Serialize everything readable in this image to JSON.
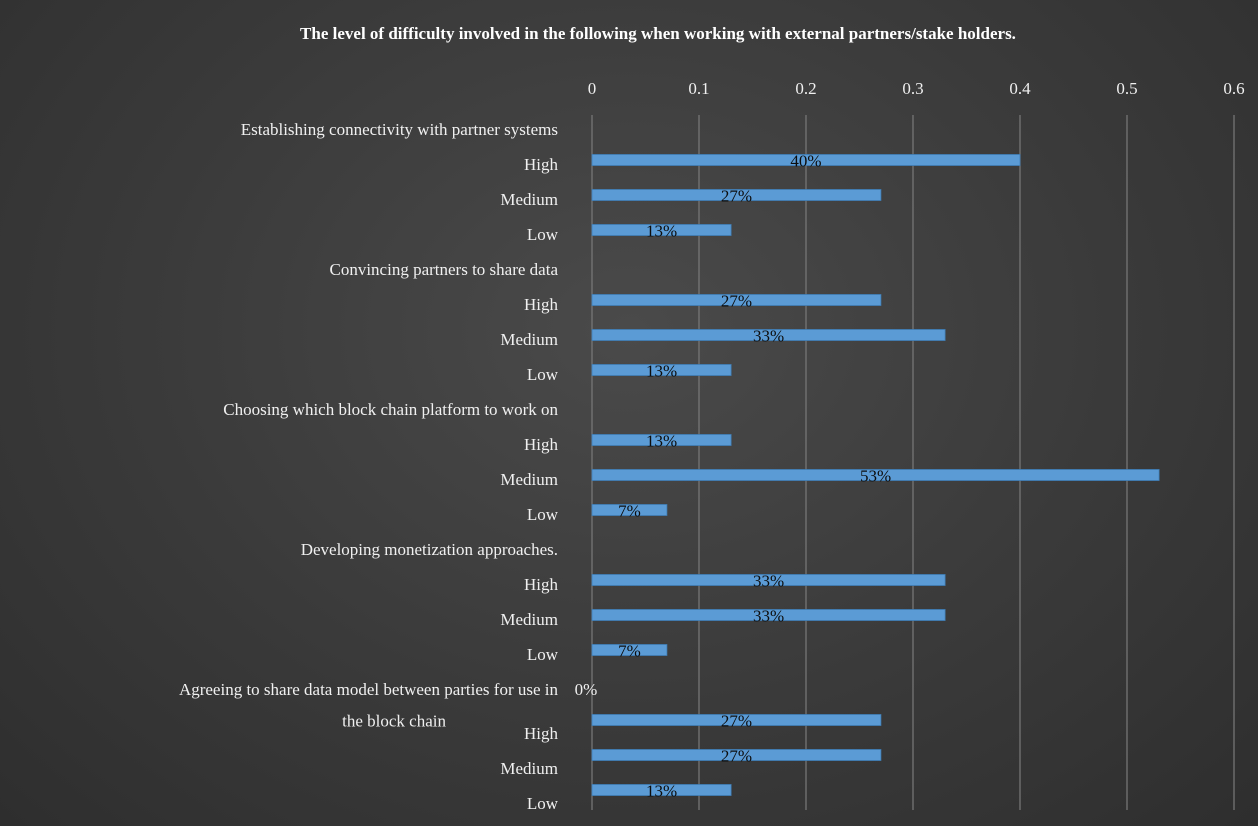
{
  "chart_data": {
    "type": "bar",
    "orientation": "horizontal",
    "title": "The level of difficulty involved in the following when working with external partners/stake holders.",
    "xlabel": "",
    "ylabel": "",
    "xlim": [
      0,
      0.6
    ],
    "x_ticks": [
      "0",
      "0.1",
      "0.2",
      "0.3",
      "0.4",
      "0.5",
      "0.6"
    ],
    "x_axis_position": "top",
    "grid": true,
    "legend": "none",
    "bar_color": "#5b9bd5",
    "groups": [
      {
        "name": "Establishing connectivity  with partner systems",
        "name_lines": [
          "Establishing connectivity  with partner systems"
        ],
        "items": [
          {
            "label": "High",
            "value": 0.4,
            "data_label": "40%"
          },
          {
            "label": "Medium",
            "value": 0.27,
            "data_label": "27%"
          },
          {
            "label": "Low",
            "value": 0.13,
            "data_label": "13%"
          }
        ]
      },
      {
        "name": "Convincing partners to share data",
        "name_lines": [
          "Convincing partners to share data"
        ],
        "items": [
          {
            "label": "High",
            "value": 0.27,
            "data_label": "27%"
          },
          {
            "label": "Medium",
            "value": 0.33,
            "data_label": "33%"
          },
          {
            "label": "Low",
            "value": 0.13,
            "data_label": "13%"
          }
        ]
      },
      {
        "name": "Choosing which block chain platform to work on",
        "name_lines": [
          "Choosing which block chain platform to work on"
        ],
        "items": [
          {
            "label": "High",
            "value": 0.13,
            "data_label": "13%"
          },
          {
            "label": "Medium",
            "value": 0.53,
            "data_label": "53%"
          },
          {
            "label": "Low",
            "value": 0.07,
            "data_label": "7%"
          }
        ]
      },
      {
        "name": "Developing monetization  approaches.",
        "name_lines": [
          "Developing monetization  approaches."
        ],
        "items": [
          {
            "label": "High",
            "value": 0.33,
            "data_label": "33%"
          },
          {
            "label": "Medium",
            "value": 0.33,
            "data_label": "33%"
          },
          {
            "label": "Low",
            "value": 0.07,
            "data_label": "7%"
          }
        ]
      },
      {
        "name": "Agreeing to share data model between parties for use in the block chain",
        "name_lines": [
          "Agreeing to share data model between parties for use in",
          "the block chain"
        ],
        "group_value": 0,
        "group_data_label": "0%",
        "items": [
          {
            "label": "High",
            "value": 0.27,
            "data_label": "27%"
          },
          {
            "label": "Medium",
            "value": 0.27,
            "data_label": "27%"
          },
          {
            "label": "Low",
            "value": 0.13,
            "data_label": "13%"
          }
        ]
      }
    ]
  }
}
